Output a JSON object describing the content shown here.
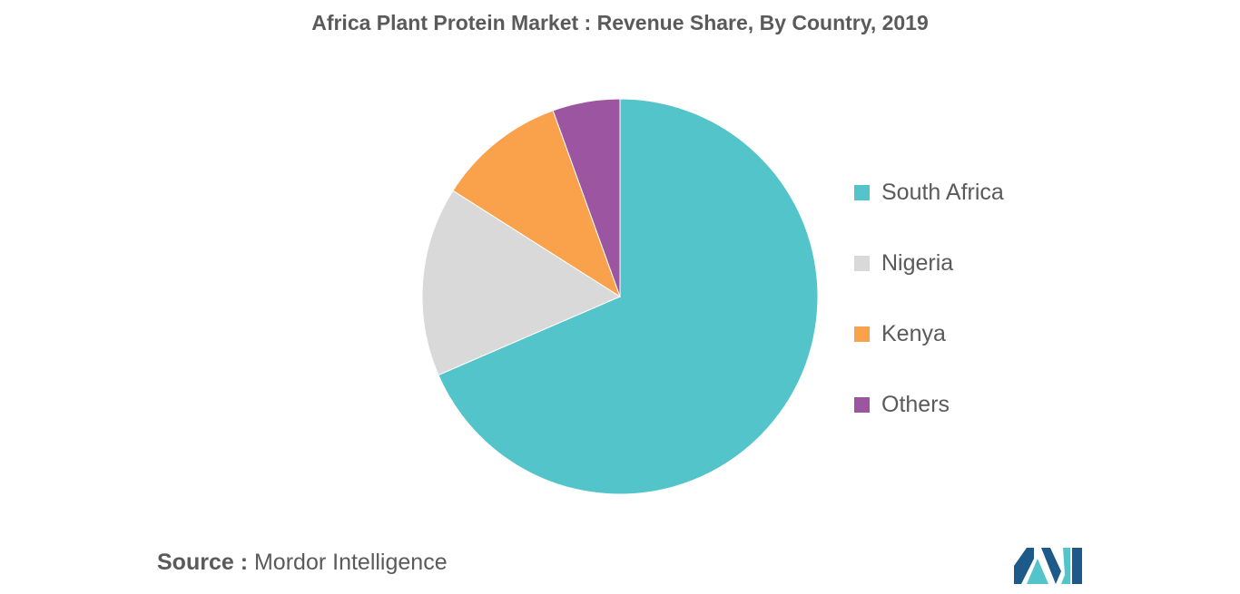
{
  "chart_data": {
    "type": "pie",
    "title": "Africa Plant Protein Market : Revenue Share, By Country, 2019",
    "categories": [
      "South Africa",
      "Nigeria",
      "Kenya",
      "Others"
    ],
    "values": [
      68.5,
      15.5,
      10.5,
      5.5
    ],
    "colors": [
      "#52c4ca",
      "#d9d9d9",
      "#f9a24b",
      "#9c55a1"
    ],
    "legend_position": "right"
  },
  "source": {
    "prefix": "Source :",
    "text": "Mordor Intelligence"
  },
  "logo": {
    "colors": [
      "#1d5a89",
      "#52c4ca"
    ]
  }
}
